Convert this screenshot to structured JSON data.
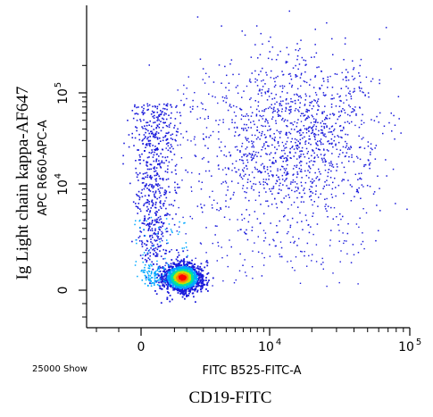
{
  "chart_data": {
    "type": "scatter",
    "subtype": "flow-cytometry-density-dot-plot",
    "xlabel": "FITC B525-FITC-A",
    "xlabel_outer": "CD19-FITC",
    "ylabel": "APC R660-APC-A",
    "ylabel_outer": "Ig Light chain kappa-AF647",
    "footer_left": "25000 Show",
    "x_scale": "biexponential",
    "y_scale": "biexponential",
    "x_ticks": [
      {
        "label": "0",
        "value": 0
      },
      {
        "label": "10",
        "exp": "4",
        "value": 10000
      },
      {
        "label": "10",
        "exp": "5",
        "value": 100000
      }
    ],
    "y_ticks": [
      {
        "label": "0",
        "value": 0
      },
      {
        "label": "10",
        "exp": "4",
        "value": 10000
      },
      {
        "label": "10",
        "exp": "5",
        "value": 100000
      }
    ],
    "x_range": [
      -1500,
      100000
    ],
    "y_range": [
      -1500,
      200000
    ],
    "populations": [
      {
        "name": "",
        "x_center": 500,
        "y_center": 100,
        "events_approx": 14000,
        "color": "#00c850"
      },
      {
        "name": "",
        "x_center": 500,
        "y_center": 3000,
        "events_approx": 3500,
        "color": "#1a1adb"
      },
      {
        "name": "",
        "x_center": 15000,
        "y_center": 30000,
        "events_approx": 7500,
        "color": "#1a1adb"
      }
    ],
    "density_colors": [
      "#1a1adb",
      "#00a8ff",
      "#00e0a0",
      "#c8e000",
      "#ff8000",
      "#ff0000"
    ],
    "grid": false,
    "legend": "none"
  }
}
